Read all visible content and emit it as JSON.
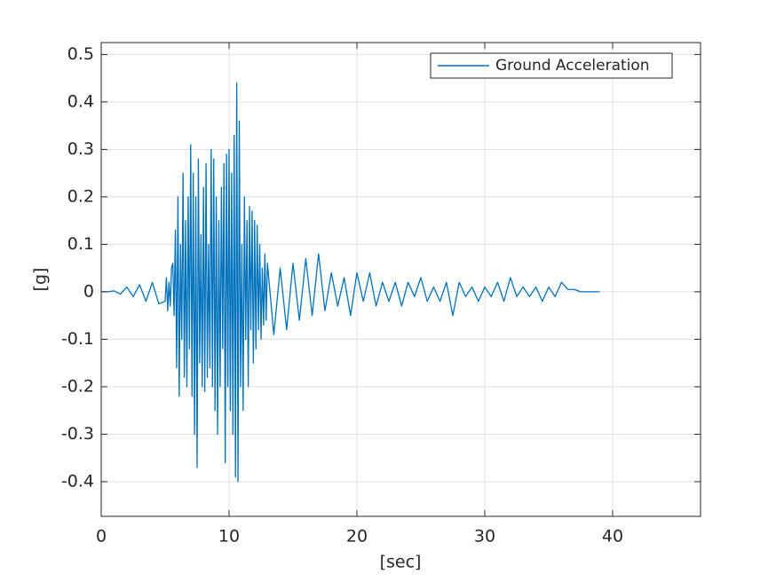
{
  "chart_data": {
    "type": "line",
    "xlabel": "[sec]",
    "ylabel": "[g]",
    "x": [
      0,
      0.5,
      1,
      1.5,
      2,
      2.5,
      3,
      3.5,
      4,
      4.5,
      5,
      5.1,
      5.2,
      5.3,
      5.4,
      5.5,
      5.6,
      5.7,
      5.8,
      5.9,
      6,
      6.1,
      6.2,
      6.3,
      6.4,
      6.5,
      6.6,
      6.7,
      6.8,
      6.9,
      7,
      7.1,
      7.2,
      7.3,
      7.4,
      7.5,
      7.6,
      7.7,
      7.8,
      7.9,
      8,
      8.1,
      8.2,
      8.3,
      8.4,
      8.5,
      8.6,
      8.7,
      8.8,
      8.9,
      9,
      9.1,
      9.2,
      9.3,
      9.4,
      9.5,
      9.6,
      9.7,
      9.8,
      9.9,
      10,
      10.1,
      10.2,
      10.3,
      10.4,
      10.5,
      10.6,
      10.7,
      10.8,
      10.9,
      11,
      11.1,
      11.2,
      11.3,
      11.4,
      11.5,
      11.6,
      11.7,
      11.8,
      11.9,
      12,
      12.1,
      12.2,
      12.3,
      12.4,
      12.5,
      12.6,
      12.7,
      12.8,
      12.9,
      13,
      13.5,
      14,
      14.5,
      15,
      15.5,
      16,
      16.5,
      17,
      17.5,
      18,
      18.5,
      19,
      19.5,
      20,
      20.5,
      21,
      21.5,
      22,
      22.5,
      23,
      23.5,
      24,
      24.5,
      25,
      25.5,
      26,
      26.5,
      27,
      27.5,
      28,
      28.5,
      29,
      29.5,
      30,
      30.5,
      31,
      31.5,
      32,
      32.5,
      33,
      33.5,
      34,
      34.5,
      35,
      35.5,
      36,
      36.5,
      37,
      37.5,
      38,
      38.5,
      39
    ],
    "series": [
      {
        "name": "Ground Acceleration",
        "color": "#0072bd",
        "values": [
          0,
          0,
          0.002,
          -0.005,
          0.01,
          -0.01,
          0.015,
          -0.02,
          0.02,
          -0.025,
          -0.02,
          0.03,
          -0.04,
          0.02,
          -0.03,
          0.05,
          0.06,
          -0.05,
          0.13,
          -0.16,
          0.2,
          -0.22,
          0.1,
          -0.1,
          0.25,
          -0.18,
          0.15,
          -0.2,
          0.2,
          -0.12,
          0.31,
          -0.22,
          0.25,
          -0.3,
          0.2,
          -0.37,
          0.28,
          -0.15,
          0.12,
          -0.2,
          0.22,
          -0.21,
          0.27,
          -0.18,
          0.1,
          -0.16,
          0.3,
          -0.2,
          0.28,
          -0.25,
          0.2,
          -0.3,
          0.15,
          -0.2,
          0.22,
          -0.12,
          0.27,
          -0.36,
          0.29,
          -0.2,
          0.3,
          -0.25,
          0.25,
          -0.3,
          0.33,
          -0.39,
          0.44,
          -0.4,
          0.36,
          -0.2,
          0.1,
          -0.25,
          0.2,
          -0.1,
          0.15,
          -0.2,
          0.18,
          -0.08,
          0.17,
          -0.15,
          0.15,
          -0.12,
          0.14,
          -0.08,
          0.1,
          -0.1,
          0.05,
          -0.07,
          0.08,
          -0.06,
          0.06,
          -0.09,
          0.05,
          -0.08,
          0.06,
          -0.06,
          0.07,
          -0.05,
          0.08,
          -0.04,
          0.04,
          -0.03,
          0.03,
          -0.05,
          0.04,
          -0.02,
          0.04,
          -0.03,
          0.02,
          -0.02,
          0.02,
          -0.03,
          0.02,
          -0.01,
          0.03,
          -0.02,
          0.01,
          -0.02,
          0.02,
          -0.05,
          0.02,
          -0.01,
          0.01,
          -0.02,
          0.01,
          -0.01,
          0.02,
          -0.02,
          0.03,
          -0.01,
          0.01,
          -0.01,
          0.01,
          -0.02,
          0.01,
          -0.01,
          0.02,
          0.005,
          0.005,
          0,
          0,
          0,
          0
        ]
      }
    ],
    "xlim": [
      0,
      46.875
    ],
    "xticks": [
      0,
      10,
      20,
      30,
      40
    ],
    "ylim": [
      -0.473,
      0.525
    ],
    "yticks": [
      -0.4,
      -0.3,
      -0.2,
      -0.1,
      0,
      0.1,
      0.2,
      0.3,
      0.4,
      0.5
    ],
    "grid": true,
    "legend": "northeast"
  }
}
